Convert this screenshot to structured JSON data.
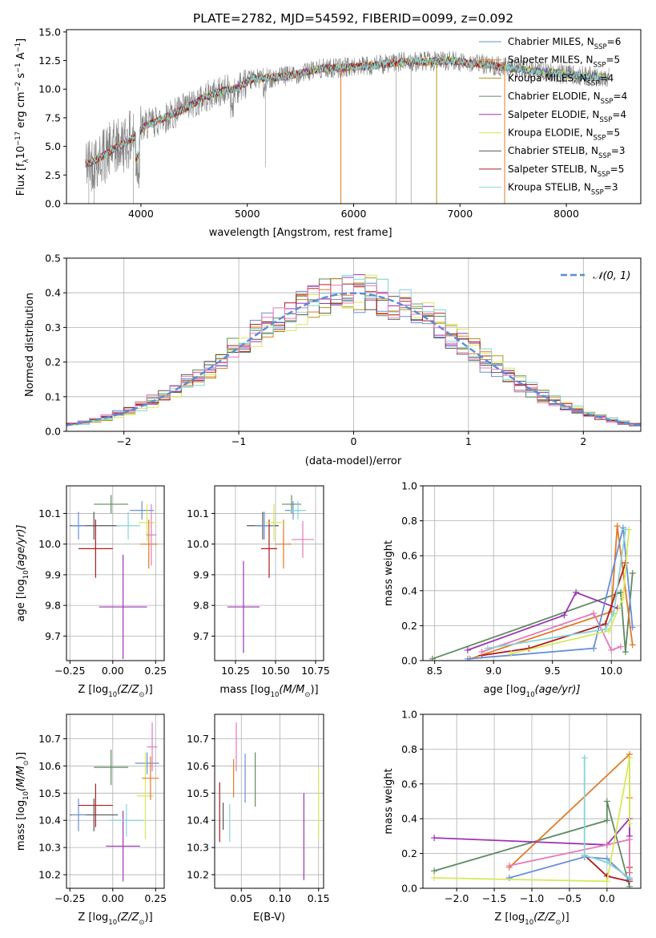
{
  "figure": {
    "title": "PLATE=2782, MJD=54592, FIBERID=0099, z=0.092",
    "colors": {
      "Chabrier MILES": "#6a8fd8",
      "Salpeter MILES": "#e07b27",
      "Kroupa MILES": "#b5931f",
      "Chabrier ELODIE": "#5f8a63",
      "Salpeter ELODIE": "#9b34b4",
      "Kroupa ELODIE": "#d8e85a",
      "Chabrier STELIB": "#555555",
      "Salpeter STELIB": "#b01c1c",
      "Kroupa STELIB": "#86d4d8",
      "pink": "#e57ab8",
      "data": "#808080",
      "gauss": "#5b8bd6"
    }
  },
  "chart_data": [
    {
      "id": "spectrum",
      "type": "line",
      "xlabel": "wavelength [Angstrom, rest frame]",
      "ylabel": "Flux [f",
      "ylabel_sub": "λ",
      "ylabel_rest": "10",
      "ylabel_exp1": "−17",
      "ylabel_mid": " erg cm",
      "ylabel_exp2": "−2",
      "ylabel_mid2": " s",
      "ylabel_exp3": "−1",
      "ylabel_mid3": " A",
      "ylabel_exp4": "−1",
      "ylabel_end": "]",
      "xlim": [
        3300,
        8700
      ],
      "ylim": [
        0,
        15.2
      ],
      "xticks": [
        4000,
        5000,
        6000,
        7000,
        8000
      ],
      "yticks": [
        0.0,
        2.5,
        5.0,
        7.5,
        10.0,
        12.5,
        15.0
      ],
      "legend_position": "top-right",
      "series": [
        {
          "name": "Chabrier MILES, N",
          "sub": "SSP",
          "tail": "=6",
          "color": "#6a8fd8"
        },
        {
          "name": "Salpeter MILES, N",
          "sub": "SSP",
          "tail": "=5",
          "color": "#e07b27"
        },
        {
          "name": "Kroupa MILES, N",
          "sub": "SSP",
          "tail": "=4",
          "color": "#b5931f"
        },
        {
          "name": "Chabrier ELODIE, N",
          "sub": "SSP",
          "tail": "=4",
          "color": "#5f8a63"
        },
        {
          "name": "Salpeter ELODIE, N",
          "sub": "SSP",
          "tail": "=4",
          "color": "#9b34b4"
        },
        {
          "name": "Kroupa ELODIE, N",
          "sub": "SSP",
          "tail": "=5",
          "color": "#d8e85a"
        },
        {
          "name": "Chabrier STELIB, N",
          "sub": "SSP",
          "tail": "=3",
          "color": "#555555"
        },
        {
          "name": "Salpeter STELIB, N",
          "sub": "SSP",
          "tail": "=5",
          "color": "#b01c1c"
        },
        {
          "name": "Kroupa STELIB, N",
          "sub": "SSP",
          "tail": "=3",
          "color": "#86d4d8"
        }
      ],
      "continuum": [
        [
          3480,
          3.4
        ],
        [
          3550,
          3.7
        ],
        [
          3650,
          4.2
        ],
        [
          3750,
          4.8
        ],
        [
          3850,
          5.3
        ],
        [
          3950,
          5.9
        ],
        [
          4050,
          6.9
        ],
        [
          4150,
          7.2
        ],
        [
          4300,
          7.8
        ],
        [
          4450,
          8.5
        ],
        [
          4600,
          9.3
        ],
        [
          4750,
          9.8
        ],
        [
          4900,
          10.1
        ],
        [
          5050,
          10.9
        ],
        [
          5200,
          11.0
        ],
        [
          5350,
          11.1
        ],
        [
          5500,
          11.4
        ],
        [
          5700,
          11.8
        ],
        [
          5900,
          11.9
        ],
        [
          6100,
          12.0
        ],
        [
          6300,
          12.2
        ],
        [
          6500,
          12.4
        ],
        [
          6700,
          12.4
        ],
        [
          6900,
          12.5
        ],
        [
          7100,
          12.3
        ],
        [
          7300,
          12.1
        ],
        [
          7500,
          11.8
        ],
        [
          7700,
          11.6
        ],
        [
          7900,
          11.4
        ],
        [
          8100,
          11.2
        ],
        [
          8400,
          11.0
        ]
      ]
    },
    {
      "id": "residuals",
      "type": "histogram",
      "xlabel": "(data-model)/error",
      "ylabel": "Normed distribution",
      "xlim": [
        -2.5,
        2.5
      ],
      "ylim": [
        0,
        0.5
      ],
      "xticks": [
        -2,
        -1,
        0,
        1,
        2
      ],
      "yticks": [
        0.0,
        0.1,
        0.2,
        0.3,
        0.4,
        0.5
      ],
      "legend_label": "𝒩(0, 1)",
      "legend_position": "top-right",
      "bin_width": 0.1
    },
    {
      "id": "age-z",
      "type": "scatter",
      "xlabel_pre": "Z [log",
      "xlabel_sub": "10",
      "xlabel_post": "(Z/Z",
      "xlabel_sun": "⊙",
      "xlabel_end": ")]",
      "ylabel_pre": "age  [log",
      "ylabel_sub": "10",
      "ylabel_post": "(age/yr)]",
      "xlim": [
        -0.27,
        0.3
      ],
      "ylim": [
        9.62,
        10.19
      ],
      "xticks": [
        "-0.25",
        "0.00",
        "0.25"
      ],
      "xtick_values": [
        -0.25,
        0.0,
        0.25
      ],
      "yticks": [
        "9.7",
        "9.8",
        "9.9",
        "10.0",
        "10.1"
      ],
      "ytick_values": [
        9.7,
        9.8,
        9.9,
        10.0,
        10.1
      ],
      "points": [
        {
          "x": -0.01,
          "y": 10.13,
          "xe": 0.1,
          "ye": 0.03,
          "color": "#5f8a63"
        },
        {
          "x": -0.11,
          "y": 10.06,
          "xe": 0.14,
          "ye": 0.045,
          "color": "#555555"
        },
        {
          "x": -0.2,
          "y": 10.06,
          "xe": 0.04,
          "ye": 0.045,
          "color": "#6a8fd8"
        },
        {
          "x": -0.1,
          "y": 9.985,
          "xe": 0.1,
          "ye": 0.095,
          "color": "#b01c1c"
        },
        {
          "x": 0.06,
          "y": 9.795,
          "xe": 0.14,
          "ye": 0.17,
          "color": "#9b34b4"
        },
        {
          "x": 0.17,
          "y": 10.11,
          "xe": 0.07,
          "ye": 0.03,
          "color": "#6a8fd8"
        },
        {
          "x": 0.2,
          "y": 10.07,
          "xe": 0.05,
          "ye": 0.06,
          "color": "#d8e85a"
        },
        {
          "x": 0.21,
          "y": 10.0,
          "xe": 0.05,
          "ye": 0.08,
          "color": "#e07b27"
        },
        {
          "x": 0.225,
          "y": 10.03,
          "xe": 0.03,
          "ye": 0.1,
          "color": "#e57ab8"
        },
        {
          "x": 0.09,
          "y": 10.06,
          "xe": 0.07,
          "ye": 0.045,
          "color": "#86d4d8"
        }
      ]
    },
    {
      "id": "age-mass",
      "type": "scatter",
      "xlabel_pre": "mass [log",
      "xlabel_sub": "10",
      "xlabel_post": "(M/M",
      "xlabel_sun": "⊙",
      "xlabel_end": ")]",
      "xlim": [
        10.12,
        10.8
      ],
      "ylim": [
        9.62,
        10.19
      ],
      "xticks": [
        "10.25",
        "10.50",
        "10.75"
      ],
      "xtick_values": [
        10.25,
        10.5,
        10.75
      ],
      "yticks": [
        "9.7",
        "9.8",
        "9.9",
        "10.0",
        "10.1"
      ],
      "ytick_values": [
        9.7,
        9.8,
        9.9,
        10.0,
        10.1
      ],
      "points": [
        {
          "x": 10.6,
          "y": 10.13,
          "xe": 0.06,
          "ye": 0.03,
          "color": "#5f8a63"
        },
        {
          "x": 10.42,
          "y": 10.06,
          "xe": 0.1,
          "ye": 0.045,
          "color": "#555555"
        },
        {
          "x": 10.43,
          "y": 10.06,
          "xe": 0.06,
          "ye": 0.045,
          "color": "#6a8fd8"
        },
        {
          "x": 10.46,
          "y": 9.985,
          "xe": 0.05,
          "ye": 0.095,
          "color": "#b01c1c"
        },
        {
          "x": 10.3,
          "y": 9.795,
          "xe": 0.1,
          "ye": 0.15,
          "color": "#9b34b4"
        },
        {
          "x": 10.61,
          "y": 10.11,
          "xe": 0.05,
          "ye": 0.03,
          "color": "#6a8fd8"
        },
        {
          "x": 10.49,
          "y": 10.07,
          "xe": 0.05,
          "ye": 0.06,
          "color": "#d8e85a"
        },
        {
          "x": 10.55,
          "y": 10.0,
          "xe": 0.05,
          "ye": 0.08,
          "color": "#e07b27"
        },
        {
          "x": 10.67,
          "y": 10.015,
          "xe": 0.07,
          "ye": 0.06,
          "color": "#e57ab8"
        },
        {
          "x": 10.64,
          "y": 10.11,
          "xe": 0.05,
          "ye": 0.03,
          "color": "#86d4d8"
        }
      ]
    },
    {
      "id": "weight-age",
      "type": "line",
      "xlabel_pre": "age  [log",
      "xlabel_sub": "10",
      "xlabel_post": "(age/yr)]",
      "ylabel": "mass weight",
      "xlim": [
        8.4,
        10.25
      ],
      "ylim": [
        0,
        1
      ],
      "xticks": [
        "8.5",
        "9.0",
        "9.5",
        "10.0"
      ],
      "xtick_values": [
        8.5,
        9.0,
        9.5,
        10.0
      ],
      "yticks": [
        "0.0",
        "0.2",
        "0.4",
        "0.6",
        "0.8",
        "1.0"
      ],
      "ytick_values": [
        0,
        0.2,
        0.4,
        0.6,
        0.8,
        1.0
      ],
      "series": [
        {
          "color": "#5f8a63",
          "points": [
            [
              8.48,
              0.01
            ],
            [
              10.08,
              0.39
            ],
            [
              10.12,
              0.05
            ],
            [
              10.18,
              0.5
            ]
          ]
        },
        {
          "color": "#e07b27",
          "points": [
            [
              8.8,
              0.01
            ],
            [
              10.0,
              0.28
            ],
            [
              10.05,
              0.77
            ],
            [
              10.18,
              0.09
            ]
          ]
        },
        {
          "color": "#9b34b4",
          "points": [
            [
              8.78,
              0.06
            ],
            [
              9.6,
              0.26
            ],
            [
              9.7,
              0.39
            ],
            [
              10.05,
              0.3
            ]
          ]
        },
        {
          "color": "#b01c1c",
          "points": [
            [
              8.9,
              0.03
            ],
            [
              9.3,
              0.07
            ],
            [
              9.95,
              0.21
            ],
            [
              10.12,
              0.56
            ]
          ]
        },
        {
          "color": "#e57ab8",
          "points": [
            [
              8.9,
              0.05
            ],
            [
              9.85,
              0.27
            ],
            [
              10.0,
              0.06
            ],
            [
              10.08,
              0.08
            ]
          ]
        },
        {
          "color": "#6a8fd8",
          "points": [
            [
              8.78,
              0.01
            ],
            [
              9.85,
              0.07
            ],
            [
              10.1,
              0.76
            ],
            [
              10.18,
              0.19
            ]
          ]
        },
        {
          "color": "#d8e85a",
          "points": [
            [
              9.15,
              0.04
            ],
            [
              9.98,
              0.17
            ],
            [
              10.1,
              0.36
            ],
            [
              10.15,
              0.75
            ]
          ]
        },
        {
          "color": "#86d4d8",
          "points": [
            [
              8.95,
              0.07
            ],
            [
              9.95,
              0.18
            ],
            [
              10.02,
              0.27
            ],
            [
              10.12,
              0.75
            ]
          ]
        }
      ]
    },
    {
      "id": "mass-z",
      "type": "scatter",
      "xlabel_pre": "Z [log",
      "xlabel_sub": "10",
      "xlabel_post": "(Z/Z",
      "xlabel_sun": "⊙",
      "xlabel_end": ")]",
      "ylabel_pre": "mass [log",
      "ylabel_sub": "10",
      "ylabel_post": "(M/M",
      "ylabel_sun": "⊙",
      "ylabel_end": ")]",
      "xlim": [
        -0.27,
        0.3
      ],
      "ylim": [
        10.15,
        10.79
      ],
      "xticks": [
        "-0.25",
        "0.00",
        "0.25"
      ],
      "xtick_values": [
        -0.25,
        0.0,
        0.25
      ],
      "yticks": [
        "10.2",
        "10.3",
        "10.4",
        "10.5",
        "10.6",
        "10.7"
      ],
      "ytick_values": [
        10.2,
        10.3,
        10.4,
        10.5,
        10.6,
        10.7
      ],
      "points": [
        {
          "x": -0.01,
          "y": 10.595,
          "xe": 0.1,
          "ye": 0.065,
          "color": "#5f8a63"
        },
        {
          "x": -0.11,
          "y": 10.42,
          "xe": 0.14,
          "ye": 0.06,
          "color": "#555555"
        },
        {
          "x": -0.2,
          "y": 10.42,
          "xe": 0.04,
          "ye": 0.06,
          "color": "#6a8fd8"
        },
        {
          "x": -0.1,
          "y": 10.455,
          "xe": 0.1,
          "ye": 0.08,
          "color": "#b01c1c"
        },
        {
          "x": 0.06,
          "y": 10.305,
          "xe": 0.1,
          "ye": 0.13,
          "color": "#9b34b4"
        },
        {
          "x": 0.2,
          "y": 10.61,
          "xe": 0.07,
          "ye": 0.04,
          "color": "#6a8fd8"
        },
        {
          "x": 0.19,
          "y": 10.49,
          "xe": 0.05,
          "ye": 0.16,
          "color": "#d8e85a"
        },
        {
          "x": 0.22,
          "y": 10.555,
          "xe": 0.05,
          "ye": 0.08,
          "color": "#e07b27"
        },
        {
          "x": 0.23,
          "y": 10.67,
          "xe": 0.03,
          "ye": 0.09,
          "color": "#e57ab8"
        },
        {
          "x": 0.08,
          "y": 10.4,
          "xe": 0.1,
          "ye": 0.06,
          "color": "#86d4d8"
        }
      ]
    },
    {
      "id": "mass-ebv",
      "type": "scatter",
      "xlabel": "E(B-V)",
      "xlim": [
        0.0155,
        0.1565
      ],
      "ylim": [
        10.15,
        10.79
      ],
      "xticks": [
        "0.05",
        "0.10",
        "0.15"
      ],
      "xtick_values": [
        0.05,
        0.1,
        0.15
      ],
      "yticks": [
        "10.2",
        "10.3",
        "10.4",
        "10.5",
        "10.6",
        "10.7"
      ],
      "ytick_values": [
        10.2,
        10.3,
        10.4,
        10.5,
        10.6,
        10.7
      ],
      "points": [
        {
          "x": 0.022,
          "y": 10.43,
          "ye": 0.11,
          "color": "#b01c1c"
        },
        {
          "x": 0.0265,
          "y": 10.415,
          "ye": 0.05,
          "color": "#555555"
        },
        {
          "x": 0.035,
          "y": 10.39,
          "ye": 0.07,
          "color": "#86d4d8"
        },
        {
          "x": 0.04,
          "y": 10.555,
          "ye": 0.07,
          "color": "#e07b27"
        },
        {
          "x": 0.0435,
          "y": 10.67,
          "ye": 0.09,
          "color": "#e57ab8"
        },
        {
          "x": 0.055,
          "y": 10.555,
          "ye": 0.09,
          "color": "#6a8fd8"
        },
        {
          "x": 0.068,
          "y": 10.55,
          "ye": 0.1,
          "color": "#5f8a63"
        },
        {
          "x": 0.131,
          "y": 10.34,
          "ye": 0.16,
          "color": "#9b34b4"
        },
        {
          "x": 0.15,
          "y": 10.46,
          "ye": 0.13,
          "color": "#d8e85a"
        }
      ]
    },
    {
      "id": "weight-z",
      "type": "line",
      "xlabel_pre": "Z [log",
      "xlabel_sub": "10",
      "xlabel_post": "(Z/Z",
      "xlabel_sun": "⊙",
      "xlabel_end": ")]",
      "ylabel": "mass weight",
      "xlim": [
        -2.45,
        0.45
      ],
      "ylim": [
        0,
        1
      ],
      "xticks": [
        "-2.0",
        "-1.5",
        "-1.0",
        "-0.5",
        "0.0"
      ],
      "xtick_values": [
        -2.0,
        -1.5,
        -1.0,
        -0.5,
        0.0
      ],
      "yticks": [
        "0.0",
        "0.2",
        "0.4",
        "0.6",
        "0.8",
        "1.0"
      ],
      "ytick_values": [
        0,
        0.2,
        0.4,
        0.6,
        0.8,
        1.0
      ],
      "series": [
        {
          "color": "#5f8a63",
          "points": [
            [
              -2.3,
              0.1
            ],
            [
              0.0,
              0.39
            ],
            [
              0.0,
              0.5
            ],
            [
              0.3,
              0.01
            ]
          ]
        },
        {
          "color": "#e07b27",
          "points": [
            [
              -1.3,
              0.12
            ],
            [
              0.3,
              0.77
            ],
            [
              0.3,
              0.52
            ],
            [
              0.3,
              0.09
            ]
          ]
        },
        {
          "color": "#9b34b4",
          "points": [
            [
              -2.3,
              0.29
            ],
            [
              0.0,
              0.25
            ],
            [
              0.3,
              0.4
            ],
            [
              0.3,
              0.3
            ]
          ]
        },
        {
          "color": "#b01c1c",
          "points": [
            [
              -0.3,
              0.19
            ],
            [
              0.0,
              0.07
            ],
            [
              0.3,
              0.04
            ],
            [
              0.3,
              0.12
            ]
          ]
        },
        {
          "color": "#e57ab8",
          "points": [
            [
              -1.3,
              0.13
            ],
            [
              0.0,
              0.25
            ],
            [
              0.3,
              0.28
            ],
            [
              0.3,
              0.06
            ]
          ]
        },
        {
          "color": "#6a8fd8",
          "points": [
            [
              -1.3,
              0.06
            ],
            [
              -0.3,
              0.18
            ],
            [
              0.0,
              0.17
            ],
            [
              0.3,
              0.05
            ]
          ]
        },
        {
          "color": "#d8e85a",
          "points": [
            [
              -2.3,
              0.06
            ],
            [
              0.0,
              0.04
            ],
            [
              0.3,
              0.75
            ],
            [
              0.3,
              0.37
            ]
          ]
        },
        {
          "color": "#86d4d8",
          "points": [
            [
              -0.3,
              0.75
            ],
            [
              -0.3,
              0.19
            ],
            [
              0.0,
              0.15
            ],
            [
              0.3,
              0.06
            ]
          ]
        }
      ]
    }
  ]
}
